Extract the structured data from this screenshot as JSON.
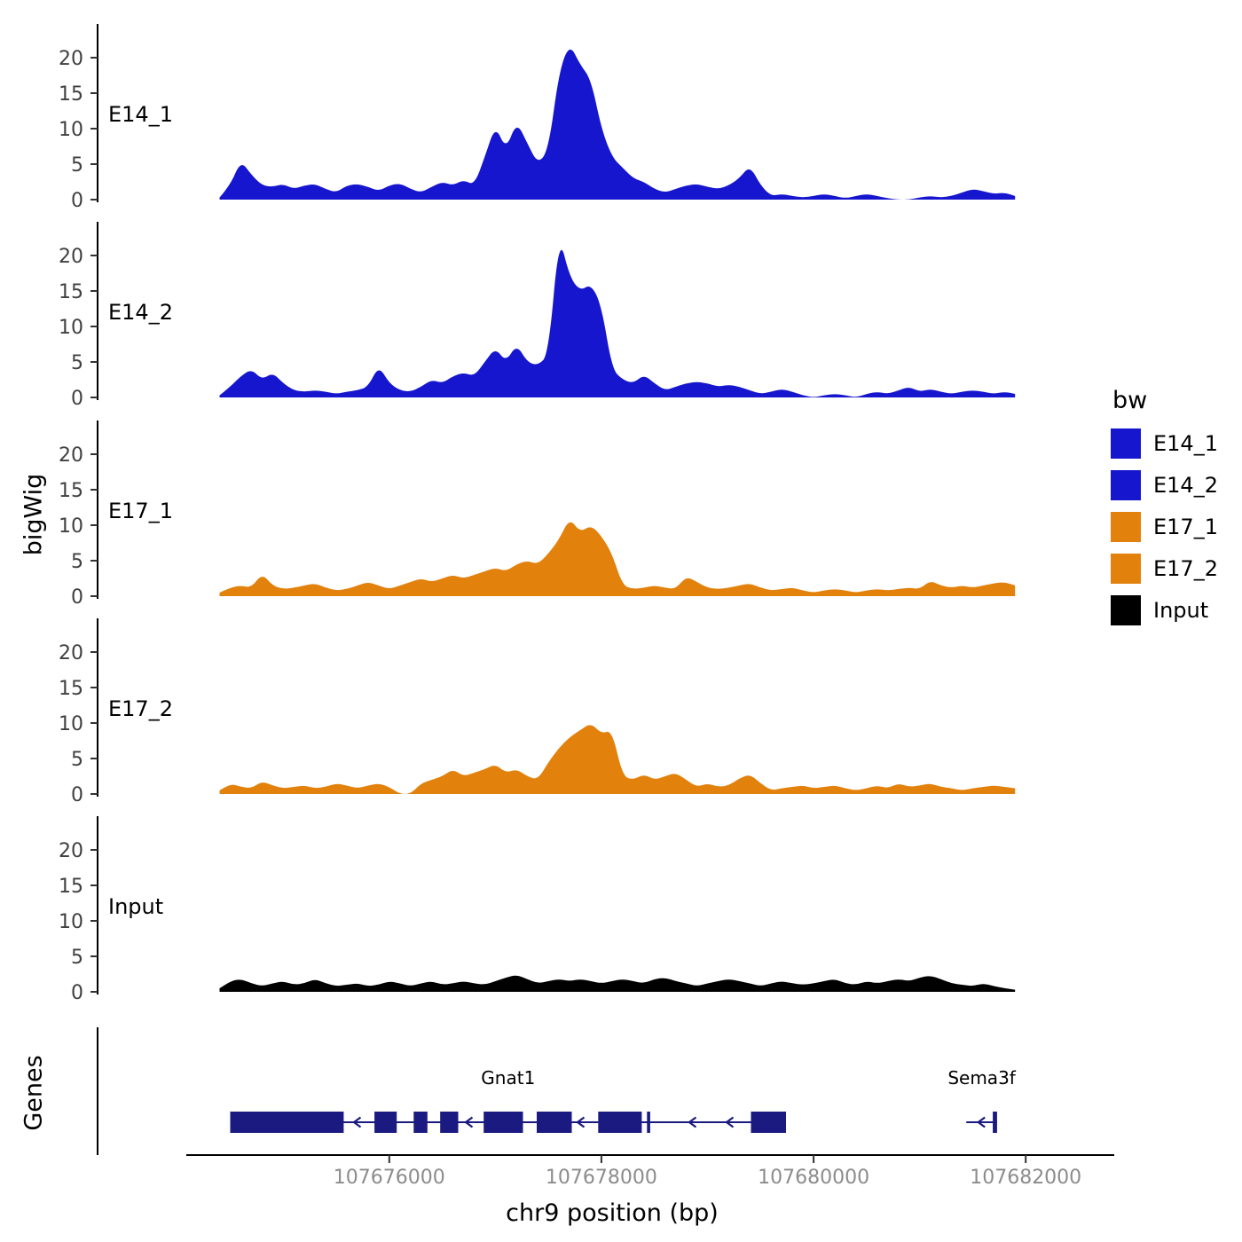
{
  "figure": {
    "y_axis_title": "bigWig",
    "genes_axis_title": "Genes",
    "x_axis_title": "chr9 position (bp)",
    "legend": {
      "title": "bw",
      "items": [
        {
          "label": "E14_1",
          "color": "#1616CE"
        },
        {
          "label": "E14_2",
          "color": "#1616CE"
        },
        {
          "label": "E17_1",
          "color": "#E2820D"
        },
        {
          "label": "E17_2",
          "color": "#E2820D"
        },
        {
          "label": "Input",
          "color": "#000000"
        }
      ]
    }
  },
  "chart_data": {
    "type": "area",
    "title": "",
    "xlabel": "chr9 position (bp)",
    "ylabel": "bigWig",
    "legend_title": "bw",
    "legend_position": "right",
    "grid": false,
    "x_view": [
      107673250,
      107682450
    ],
    "x_start": 107674400,
    "x_step": 100,
    "x_ticks": [
      107676000,
      107678000,
      107680000,
      107682000
    ],
    "y_ticks": [
      0,
      5,
      10,
      15,
      20
    ],
    "ylim": [
      0,
      23.5
    ],
    "gene_color": "#1A1A80",
    "tracks": [
      {
        "label": "E14_1",
        "color": "#1616CE",
        "values": [
          0.3,
          2,
          5.5,
          3.5,
          2,
          1.8,
          2.2,
          1.5,
          2,
          2.2,
          1.5,
          1,
          2,
          2.2,
          1.8,
          1.2,
          2,
          2.3,
          1.5,
          1,
          1.8,
          2.5,
          2,
          2.8,
          2,
          6,
          10.5,
          7,
          11,
          8,
          5,
          7,
          18,
          22,
          19,
          17,
          10,
          6,
          4.5,
          3,
          2.5,
          1.5,
          1,
          1.5,
          2,
          2.2,
          1.8,
          1.5,
          2,
          3,
          4.8,
          2,
          0.5,
          0.8,
          0.5,
          0.3,
          0.5,
          0.8,
          0.5,
          0.2,
          0.5,
          0.8,
          0.5,
          0.2,
          0,
          0,
          0.3,
          0.5,
          0.3,
          0.5,
          1,
          1.5,
          1.2,
          0.8,
          1,
          0.5
        ]
      },
      {
        "label": "E14_2",
        "color": "#1616CE",
        "values": [
          0.3,
          1.5,
          3,
          4,
          2.5,
          3.5,
          2,
          1,
          0.8,
          1,
          0.8,
          0.5,
          0.8,
          1,
          1.5,
          4.5,
          2,
          1,
          0.8,
          1.5,
          2.5,
          2,
          3,
          3.5,
          3,
          5,
          7,
          5,
          7.5,
          5,
          4.5,
          6,
          23,
          17,
          15,
          16,
          13,
          4,
          2.5,
          2,
          3.2,
          2,
          1,
          1.5,
          2,
          2.2,
          2,
          1.5,
          1.8,
          1.5,
          1,
          0.5,
          0.8,
          1.2,
          0.8,
          0.3,
          0,
          0.3,
          0.5,
          0.3,
          0,
          0.5,
          0.8,
          0.5,
          1,
          1.5,
          0.8,
          1.2,
          0.8,
          0.5,
          0.8,
          1,
          0.8,
          0.5,
          0.8,
          0.5
        ]
      },
      {
        "label": "E17_1",
        "color": "#E2820D",
        "values": [
          0.5,
          1.2,
          1.5,
          1.2,
          3.2,
          1.5,
          1,
          1.2,
          1.5,
          1.8,
          1.2,
          0.8,
          1,
          1.5,
          2,
          1.5,
          1,
          1.5,
          2,
          2.5,
          2,
          2.5,
          3,
          2.5,
          3,
          3.5,
          4,
          3.5,
          4.5,
          5,
          4.5,
          6,
          8,
          11,
          9,
          10,
          8.5,
          6,
          1.5,
          1,
          1.2,
          1.5,
          1.2,
          1,
          2.8,
          2,
          1.2,
          1,
          1.2,
          1.5,
          1.8,
          1.2,
          0.8,
          1,
          1.2,
          0.8,
          0.5,
          0.8,
          1,
          0.8,
          0.5,
          0.8,
          1,
          0.8,
          1,
          1.2,
          1,
          2.2,
          1.5,
          1.2,
          1.5,
          1.2,
          1.5,
          1.8,
          2,
          1.5
        ]
      },
      {
        "label": "E17_2",
        "color": "#E2820D",
        "values": [
          0.5,
          1.5,
          1,
          0.8,
          1.8,
          1.2,
          0.8,
          1,
          1.2,
          0.8,
          1,
          1.5,
          1.2,
          0.8,
          1.2,
          1.5,
          1,
          0,
          0,
          1.5,
          2,
          2.5,
          3.5,
          2.5,
          3,
          3.5,
          4.2,
          3,
          3.5,
          2.5,
          2,
          4.5,
          6.5,
          8,
          9,
          10,
          8.5,
          9,
          2.5,
          2,
          2.8,
          2,
          2.5,
          3,
          2,
          1,
          1.5,
          1,
          1.2,
          2.2,
          2.8,
          1.5,
          0.5,
          0.8,
          1,
          1.2,
          0.8,
          1,
          1.2,
          0.8,
          0.5,
          0.8,
          1.2,
          0.8,
          1.5,
          1,
          1.2,
          1.5,
          1,
          0.8,
          0.5,
          0.8,
          1,
          1.2,
          1,
          0.8
        ]
      },
      {
        "label": "Input",
        "color": "#000000",
        "values": [
          0.5,
          1.5,
          1.8,
          1.2,
          0.8,
          1.2,
          1.5,
          1,
          1.2,
          1.8,
          1.2,
          0.8,
          1,
          1.2,
          0.8,
          1,
          1.5,
          1.2,
          0.8,
          1.2,
          1.5,
          1,
          1.2,
          1.5,
          1.2,
          1,
          1.5,
          2,
          2.4,
          1.8,
          1.2,
          1.5,
          1.8,
          1.5,
          1.8,
          1.5,
          1.2,
          1.5,
          1.8,
          1.5,
          1.2,
          1.8,
          2,
          1.5,
          1.2,
          0.8,
          1.2,
          1.5,
          1.8,
          1.5,
          1.2,
          0.8,
          1.2,
          1.5,
          1.2,
          1,
          1.2,
          1.5,
          1.8,
          1.2,
          1,
          1.5,
          1.2,
          1.5,
          1.8,
          1.5,
          2,
          2.3,
          1.8,
          1.2,
          1,
          0.8,
          1.2,
          0.8,
          0.5,
          0.3
        ]
      }
    ],
    "genes": [
      {
        "name": "Gnat1",
        "strand": "-",
        "start": 107674500,
        "end": 107679740,
        "exons": [
          [
            107674500,
            107675570
          ],
          [
            107675860,
            107676070
          ],
          [
            107676230,
            107676360
          ],
          [
            107676480,
            107676650
          ],
          [
            107676890,
            107677260
          ],
          [
            107677390,
            107677720
          ],
          [
            107677970,
            107678380
          ],
          [
            107678430,
            107678460
          ],
          [
            107679410,
            107679740
          ]
        ]
      },
      {
        "name": "Sema3f",
        "strand": "-",
        "start": 107681440,
        "end": 107681730,
        "exons": [
          [
            107681690,
            107681730
          ]
        ]
      }
    ]
  }
}
